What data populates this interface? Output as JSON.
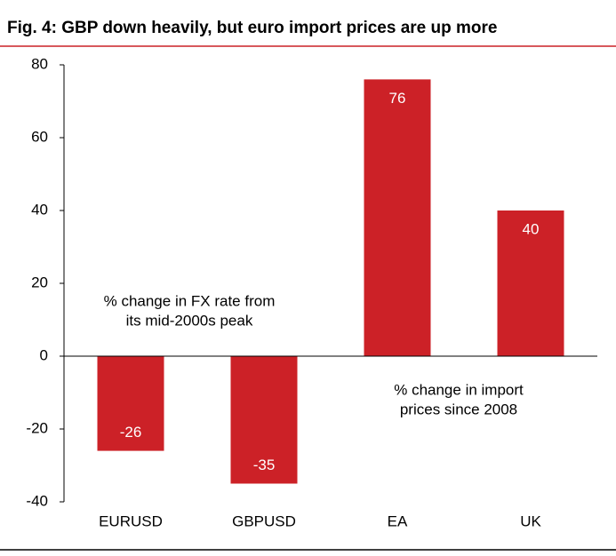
{
  "chart_data": {
    "type": "bar",
    "title": "Fig. 4: GBP down heavily, but euro import prices are up more",
    "categories": [
      "EURUSD",
      "GBPUSD",
      "EA",
      "UK"
    ],
    "values": [
      -26,
      -35,
      76,
      40
    ],
    "color": "#cc2127",
    "ylim": [
      -40,
      80
    ],
    "yticks": [
      -40,
      -20,
      0,
      20,
      40,
      60,
      80
    ],
    "grid": false,
    "annotations": [
      [
        "% change in FX rate from",
        "its mid-2000s peak"
      ],
      [
        "% change in import",
        "prices since 2008"
      ]
    ]
  }
}
